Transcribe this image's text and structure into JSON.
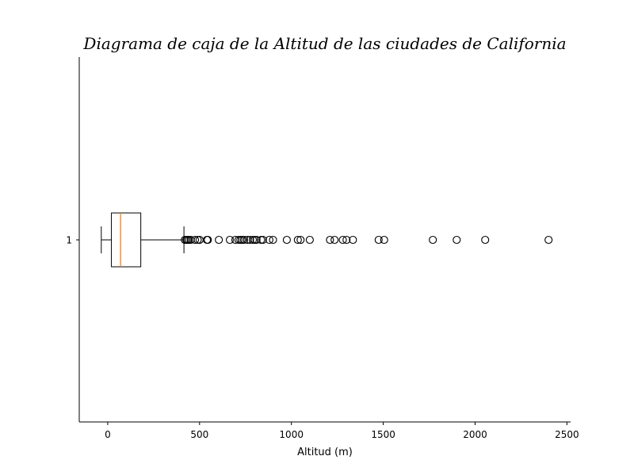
{
  "chart_data": {
    "type": "box",
    "orientation": "horizontal",
    "title": "Diagrama de caja de la Altitud de las ciudades de California",
    "xlabel": "Altitud (m)",
    "ylabel": "",
    "xlim": [
      -155,
      2520
    ],
    "xticks": [
      0,
      500,
      1000,
      1500,
      2000,
      2500
    ],
    "xtick_labels": [
      "0",
      "500",
      "1000",
      "1500",
      "2000",
      "2500"
    ],
    "categories": [
      "1"
    ],
    "box": {
      "whisker_low": -35,
      "q1": 20,
      "median": 70,
      "q3": 180,
      "whisker_high": 415
    },
    "outliers": [
      420,
      428,
      435,
      443,
      452,
      475,
      490,
      500,
      540,
      545,
      605,
      665,
      695,
      712,
      722,
      732,
      742,
      760,
      775,
      790,
      800,
      810,
      835,
      845,
      880,
      900,
      975,
      1035,
      1050,
      1100,
      1210,
      1235,
      1280,
      1300,
      1335,
      1475,
      1505,
      1770,
      1900,
      2055,
      2400
    ],
    "colors": {
      "box": "#000000",
      "median": "#ff7f0e",
      "outlier": "#000000"
    },
    "grid": false,
    "spines": "left-bottom"
  }
}
